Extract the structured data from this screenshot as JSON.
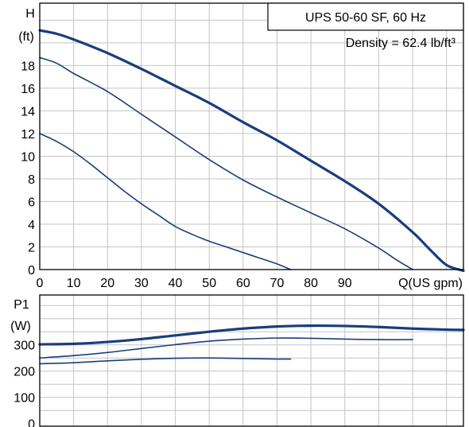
{
  "chart_data": [
    {
      "type": "line",
      "title": "UPS 50-60 SF, 60 Hz",
      "note": "Density = 62.4 lb/ft³",
      "ylabel_line1": "H",
      "ylabel_line2": "(ft)",
      "xlabel": "Q(US gpm)",
      "xlim": [
        0,
        125
      ],
      "ylim": [
        0,
        23.5
      ],
      "x_ticks": [
        "0",
        "10",
        "20",
        "30",
        "40",
        "50",
        "60",
        "70",
        "80",
        "90"
      ],
      "y_ticks": [
        "0",
        "2",
        "4",
        "6",
        "8",
        "10",
        "12",
        "14",
        "16",
        "18"
      ],
      "grid": true,
      "series": [
        {
          "emphasis": "bold",
          "x": [
            0,
            5,
            10,
            20,
            30,
            40,
            50,
            60,
            70,
            80,
            90,
            100,
            110,
            115,
            120,
            125
          ],
          "y": [
            21.1,
            20.8,
            20.3,
            19.1,
            17.7,
            16.2,
            14.7,
            13.0,
            11.4,
            9.6,
            7.8,
            5.8,
            3.3,
            1.8,
            0.4,
            -0.1
          ]
        },
        {
          "emphasis": "normal",
          "x": [
            0,
            5,
            10,
            20,
            30,
            40,
            50,
            60,
            70,
            80,
            90,
            100,
            105,
            110
          ],
          "y": [
            18.7,
            18.2,
            17.3,
            15.7,
            13.7,
            11.7,
            9.7,
            7.9,
            6.4,
            5.0,
            3.6,
            1.9,
            0.9,
            0.0
          ]
        },
        {
          "emphasis": "normal",
          "x": [
            0,
            5,
            10,
            15,
            20,
            25,
            30,
            35,
            40,
            45,
            50,
            55,
            60,
            65,
            70,
            74
          ],
          "y": [
            12.0,
            11.3,
            10.4,
            9.3,
            8.1,
            6.9,
            5.8,
            4.8,
            3.8,
            3.1,
            2.5,
            2.0,
            1.5,
            1.0,
            0.5,
            0.0
          ]
        }
      ]
    },
    {
      "type": "line",
      "ylabel_line1": "P1",
      "ylabel_line2": "(W)",
      "xlim": [
        0,
        125
      ],
      "ylim": [
        -10,
        490
      ],
      "y_ticks": [
        "0",
        "100",
        "200",
        "300"
      ],
      "grid": true,
      "series": [
        {
          "emphasis": "bold",
          "x": [
            0,
            10,
            20,
            30,
            40,
            50,
            60,
            70,
            80,
            90,
            100,
            110,
            120,
            125
          ],
          "y": [
            302,
            304,
            311,
            322,
            336,
            350,
            362,
            370,
            373,
            372,
            368,
            362,
            358,
            357
          ]
        },
        {
          "emphasis": "normal",
          "x": [
            0,
            10,
            20,
            30,
            40,
            50,
            60,
            70,
            80,
            90,
            100,
            110
          ],
          "y": [
            250,
            259,
            271,
            286,
            301,
            314,
            322,
            326,
            325,
            322,
            320,
            320
          ]
        },
        {
          "emphasis": "normal",
          "x": [
            0,
            10,
            20,
            30,
            40,
            50,
            60,
            70,
            74
          ],
          "y": [
            228,
            232,
            239,
            245,
            249,
            250,
            248,
            246,
            246
          ]
        }
      ]
    }
  ]
}
